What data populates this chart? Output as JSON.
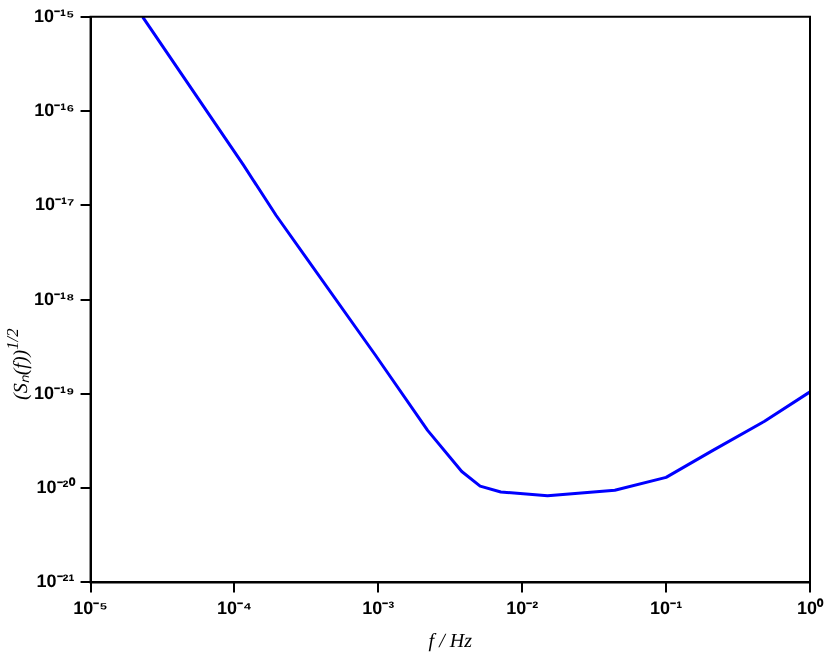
{
  "chart_data": {
    "type": "line",
    "xlabel": "f / Hz",
    "ylabel": "(Sₙ(f))$^{1/2}$",
    "log": "xy",
    "grid": false,
    "legend": false,
    "marker": "none",
    "line_style": "solid",
    "x": [
      2.3e-05,
      0.000115,
      0.000195,
      0.00095,
      0.0022,
      0.0038,
      0.0051,
      0.0071,
      0.015,
      0.044,
      0.1,
      0.21,
      0.48,
      1
    ],
    "series": [
      {
        "color": "#0000ff",
        "values": [
          1e-15,
          2.7e-17,
          7.8e-18,
          2.6e-19,
          4.1e-20,
          1.5e-20,
          1.05e-20,
          9.1e-21,
          8.3e-21,
          9.5e-21,
          1.3e-20,
          2.5e-20,
          5.1e-20,
          1.05e-19
        ]
      }
    ],
    "xlim": [
      1e-05,
      1
    ],
    "ylim": [
      1e-21,
      1e-15
    ],
    "xticks": [
      {
        "value": 1e-05,
        "label": "10⁻⁵"
      },
      {
        "value": 0.0001,
        "label": "10⁻⁴"
      },
      {
        "value": 0.001,
        "label": "10⁻³"
      },
      {
        "value": 0.01,
        "label": "10⁻²"
      },
      {
        "value": 0.1,
        "label": "10⁻¹"
      },
      {
        "value": 1,
        "label": "10⁰"
      }
    ],
    "yticks": [
      {
        "value": 1e-21,
        "label": "10⁻²¹"
      },
      {
        "value": 1e-20,
        "label": "10⁻²⁰"
      },
      {
        "value": 1e-19,
        "label": "10⁻¹⁹"
      },
      {
        "value": 1e-18,
        "label": "10⁻¹⁸"
      },
      {
        "value": 1e-17,
        "label": "10⁻¹⁷"
      },
      {
        "value": 1e-16,
        "label": "10⁻¹⁶"
      },
      {
        "value": 1e-15,
        "label": "10⁻¹⁵"
      }
    ]
  }
}
